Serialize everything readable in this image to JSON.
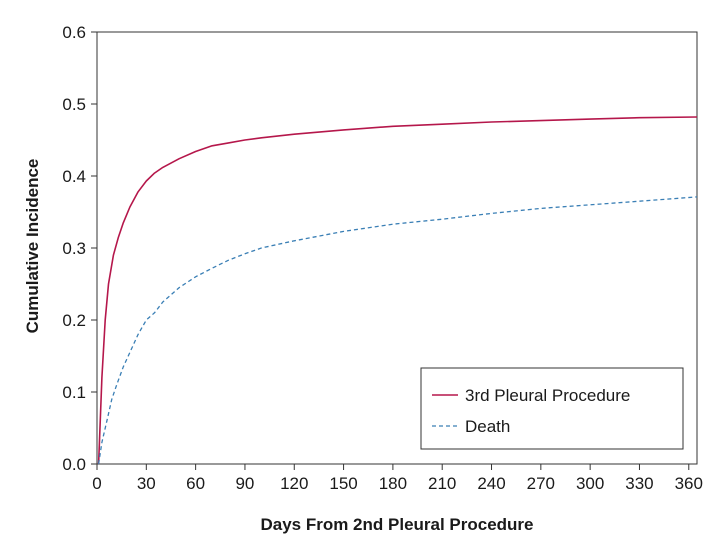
{
  "chart_data": {
    "type": "line",
    "title": "",
    "xlabel": "Days From 2nd Pleural Procedure",
    "ylabel": "Cumulative Incidence",
    "xlim": [
      0,
      365
    ],
    "ylim": [
      0,
      0.6
    ],
    "x_ticks": [
      0,
      30,
      60,
      90,
      120,
      150,
      180,
      210,
      240,
      270,
      300,
      330,
      360
    ],
    "y_ticks": [
      0.0,
      0.1,
      0.2,
      0.3,
      0.4,
      0.5,
      0.6
    ],
    "x_tick_labels": [
      "0",
      "30",
      "60",
      "90",
      "120",
      "150",
      "180",
      "210",
      "240",
      "270",
      "300",
      "330",
      "360"
    ],
    "y_tick_labels": [
      "0.0",
      "0.1",
      "0.2",
      "0.3",
      "0.4",
      "0.5",
      "0.6"
    ],
    "grid": false,
    "legend_position": "bottom-right",
    "series": [
      {
        "name": "3rd Pleural Procedure",
        "color": "#b5174b",
        "style": "solid",
        "x": [
          1,
          3,
          5,
          7,
          10,
          13,
          16,
          20,
          25,
          30,
          35,
          40,
          50,
          60,
          70,
          80,
          90,
          100,
          120,
          150,
          180,
          210,
          240,
          270,
          300,
          330,
          365
        ],
        "y": [
          0.0,
          0.12,
          0.2,
          0.25,
          0.29,
          0.315,
          0.335,
          0.357,
          0.378,
          0.393,
          0.404,
          0.412,
          0.424,
          0.434,
          0.442,
          0.446,
          0.45,
          0.453,
          0.458,
          0.464,
          0.469,
          0.472,
          0.475,
          0.477,
          0.479,
          0.481,
          0.482
        ]
      },
      {
        "name": "Death",
        "color": "#3a7fb5",
        "style": "dashed",
        "x": [
          1,
          3,
          6,
          9,
          12,
          16,
          20,
          25,
          30,
          35,
          40,
          50,
          60,
          70,
          80,
          90,
          100,
          120,
          150,
          180,
          210,
          240,
          270,
          300,
          330,
          365
        ],
        "y": [
          0.0,
          0.03,
          0.06,
          0.09,
          0.11,
          0.135,
          0.155,
          0.18,
          0.2,
          0.21,
          0.225,
          0.245,
          0.26,
          0.272,
          0.283,
          0.292,
          0.3,
          0.31,
          0.323,
          0.333,
          0.34,
          0.348,
          0.355,
          0.36,
          0.365,
          0.371
        ]
      }
    ]
  }
}
